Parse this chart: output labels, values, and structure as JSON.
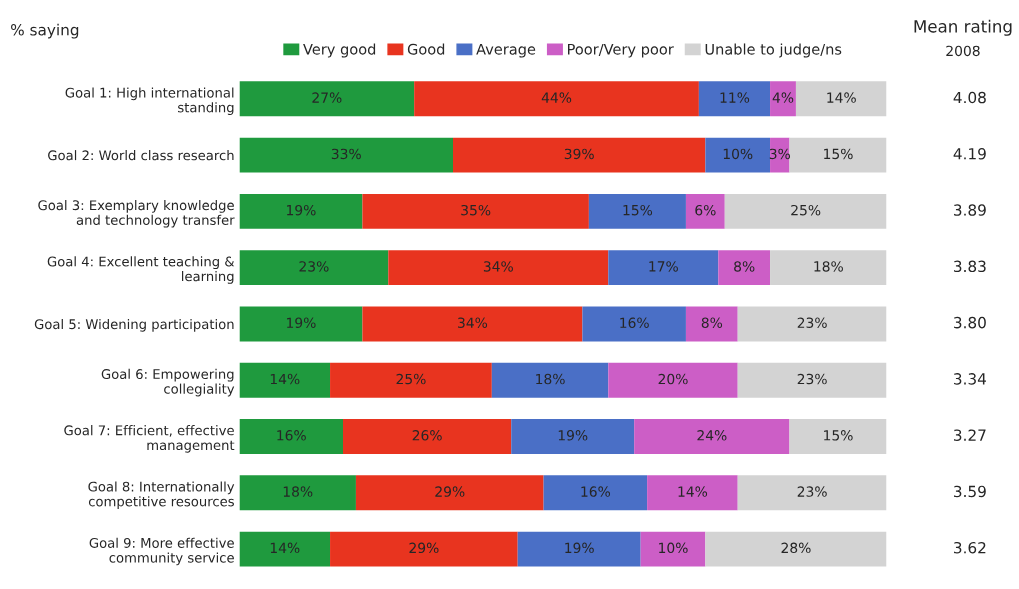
{
  "chart_data": {
    "type": "bar",
    "orientation": "horizontal",
    "stacked": true,
    "legend": "top",
    "tick_labels": "y",
    "grid": false,
    "categories": [
      "Goal 1: High international\nstanding",
      "Goal 2: World class research",
      "Goal 3: Exemplary knowledge\nand technology transfer",
      "Goal 4: Excellent teaching &\nlearning",
      "Goal 5: Widening participation",
      "Goal 6: Empowering\ncollegiality",
      "Goal 7: Efficient, effective\nmanagement",
      "Goal 8: Internationally\ncompetitive resources",
      "Goal 9: More effective\ncommunity service"
    ],
    "series": [
      {
        "name": "Very good",
        "color": "#1f9a3e",
        "values": [
          27,
          33,
          19,
          23,
          19,
          14,
          16,
          18,
          14
        ],
        "value_labels": [
          "27%",
          "33%",
          "19%",
          "23%",
          "19%",
          "14%",
          "16%",
          "18%",
          "14%"
        ]
      },
      {
        "name": "Good",
        "color": "#e8341f",
        "values": [
          44,
          39,
          35,
          34,
          34,
          25,
          26,
          29,
          29
        ],
        "value_labels": [
          "44%",
          "39%",
          "35%",
          "34%",
          "34%",
          "25%",
          "26%",
          "29%",
          "29%"
        ]
      },
      {
        "name": "Average",
        "color": "#4a6fc6",
        "values": [
          11,
          10,
          15,
          17,
          16,
          18,
          19,
          16,
          19
        ],
        "value_labels": [
          "11%",
          "10%",
          "15%",
          "17%",
          "16%",
          "18%",
          "19%",
          "16%",
          "19%"
        ]
      },
      {
        "name": "Poor/Very poor",
        "color": "#cc5ec6",
        "values": [
          4,
          3,
          6,
          8,
          8,
          20,
          24,
          14,
          10
        ],
        "value_labels": [
          "4%",
          "3%",
          "6%",
          "8%",
          "8%",
          "20%",
          "24%",
          "14%",
          "10%"
        ]
      },
      {
        "name": "Unable to judge/ns",
        "color": "#d3d3d3",
        "values": [
          14,
          15,
          25,
          18,
          23,
          23,
          15,
          23,
          28
        ],
        "value_labels": [
          "14%",
          "15%",
          "25%",
          "18%",
          "23%",
          "23%",
          "15%",
          "23%",
          "28%"
        ]
      }
    ],
    "annotations": [
      "% saying",
      "Mean rating",
      "2008",
      "4.08",
      "4.19",
      "3.89",
      "3.83",
      "3.80",
      "3.34",
      "3.27",
      "3.59",
      "3.62"
    ]
  }
}
